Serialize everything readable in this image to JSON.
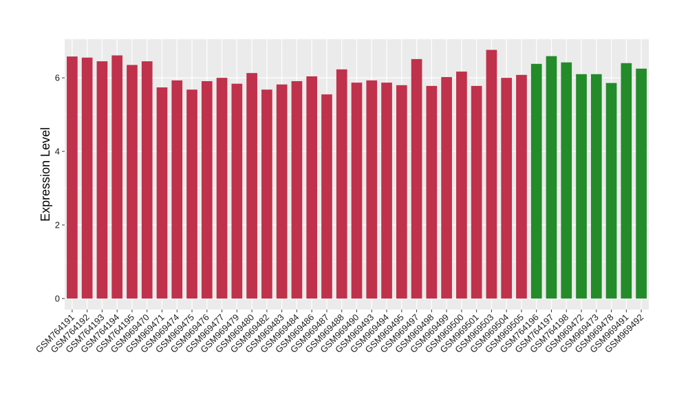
{
  "chart_data": {
    "type": "bar",
    "title": "",
    "xlabel": "",
    "ylabel": "Expression Level",
    "ylim": [
      -0.3,
      7.05
    ],
    "yticks": [
      0,
      2,
      4,
      6
    ],
    "grid": true,
    "categories": [
      "GSM764191",
      "GSM764192",
      "GSM764193",
      "GSM764194",
      "GSM764195",
      "GSM969470",
      "GSM969471",
      "GSM969474",
      "GSM969475",
      "GSM969476",
      "GSM969477",
      "GSM969479",
      "GSM969480",
      "GSM969482",
      "GSM969483",
      "GSM969484",
      "GSM969486",
      "GSM969487",
      "GSM969488",
      "GSM969490",
      "GSM969493",
      "GSM969494",
      "GSM969495",
      "GSM969497",
      "GSM969498",
      "GSM969499",
      "GSM969500",
      "GSM969501",
      "GSM969503",
      "GSM969504",
      "GSM969505",
      "GSM764196",
      "GSM764197",
      "GSM764198",
      "GSM969472",
      "GSM969473",
      "GSM969478",
      "GSM969491",
      "GSM969492"
    ],
    "values": [
      6.58,
      6.55,
      6.45,
      6.61,
      6.35,
      6.45,
      5.74,
      5.93,
      5.68,
      5.91,
      6.0,
      5.84,
      6.13,
      5.68,
      5.82,
      5.91,
      6.04,
      5.55,
      6.23,
      5.87,
      5.93,
      5.87,
      5.8,
      6.51,
      5.78,
      6.02,
      6.17,
      5.78,
      6.76,
      6.0,
      6.08,
      6.38,
      6.59,
      6.42,
      6.1,
      6.1,
      5.86,
      6.4,
      6.25
    ],
    "colors": [
      "#c0314b",
      "#c0314b",
      "#c0314b",
      "#c0314b",
      "#c0314b",
      "#c0314b",
      "#c0314b",
      "#c0314b",
      "#c0314b",
      "#c0314b",
      "#c0314b",
      "#c0314b",
      "#c0314b",
      "#c0314b",
      "#c0314b",
      "#c0314b",
      "#c0314b",
      "#c0314b",
      "#c0314b",
      "#c0314b",
      "#c0314b",
      "#c0314b",
      "#c0314b",
      "#c0314b",
      "#c0314b",
      "#c0314b",
      "#c0314b",
      "#c0314b",
      "#c0314b",
      "#c0314b",
      "#c0314b",
      "#238b2a",
      "#238b2a",
      "#238b2a",
      "#238b2a",
      "#238b2a",
      "#238b2a",
      "#238b2a",
      "#238b2a"
    ],
    "panel_background": "#ebebeb",
    "grid_color": "#ffffff"
  }
}
